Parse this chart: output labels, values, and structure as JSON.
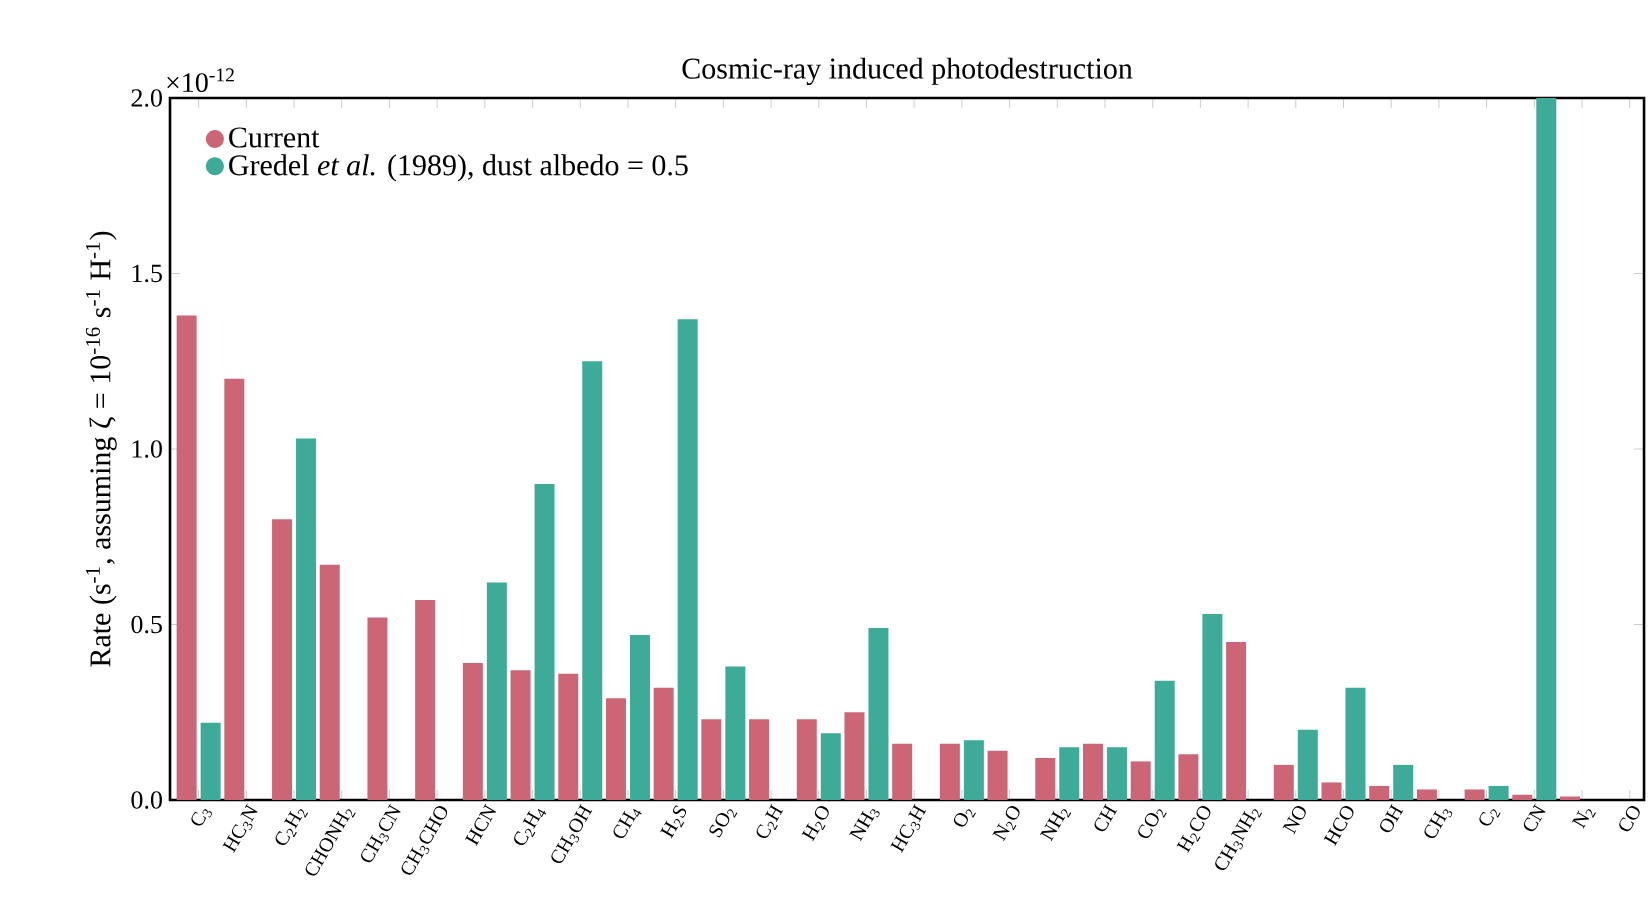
{
  "chart_data": {
    "type": "bar",
    "title": "Cosmic-ray induced photodestruction",
    "ylabel": "Rate (s$^{-1}$, assuming ζ = 10$^{-16}$ s$^{-1}$ H$^{-1}$)",
    "annotations": [
      "×10$^{-12}$"
    ],
    "categories": [
      "C$_{3}$",
      "HC$_{3}$N",
      "C$_{2}$H$_{2}$",
      "CHONH$_{2}$",
      "CH$_{3}$CN",
      "CH$_{3}$CHO",
      "HCN",
      "C$_{2}$H$_{4}$",
      "CH$_{3}$OH",
      "CH$_{4}$",
      "H$_{2}$S",
      "SO$_{2}$",
      "C$_{2}$H",
      "H$_{2}$O",
      "NH$_{3}$",
      "HC$_{3}$H",
      "O$_{2}$",
      "N$_{2}$O",
      "NH$_{2}$",
      "CH",
      "CO$_{2}$",
      "H$_{2}$CO",
      "CH$_{3}$NH$_{2}$",
      "NO",
      "HCO",
      "OH",
      "CH$_{3}$",
      "C$_{2}$",
      "CN",
      "N$_{2}$",
      "CO"
    ],
    "series": [
      {
        "name": "Current",
        "color": "#cc6677",
        "values": [
          1.38,
          1.2,
          0.8,
          0.67,
          0.52,
          0.57,
          0.39,
          0.37,
          0.36,
          0.29,
          0.32,
          0.23,
          0.23,
          0.23,
          0.25,
          0.16,
          0.16,
          0.14,
          0.12,
          0.16,
          0.11,
          0.13,
          0.45,
          0.1,
          0.05,
          0.04,
          0.03,
          0.03,
          0.015,
          0.01,
          null
        ]
      },
      {
        "name": "Gredel *et al.* (1989), dust albedo = 0.5",
        "color": "#3eaa98",
        "values": [
          0.22,
          null,
          1.03,
          null,
          null,
          null,
          0.62,
          0.9,
          1.25,
          0.47,
          1.37,
          0.38,
          null,
          0.19,
          0.49,
          null,
          0.17,
          null,
          0.15,
          0.15,
          0.34,
          0.53,
          null,
          0.2,
          0.32,
          0.1,
          null,
          0.04,
          2.0,
          null,
          null
        ]
      }
    ],
    "ylim": [
      0,
      2.0
    ],
    "yticks": [
      {
        "value": 0,
        "label": "0.0"
      },
      {
        "value": 0.5,
        "label": "0.5"
      },
      {
        "value": 1.0,
        "label": "1.0"
      },
      {
        "value": 1.5,
        "label": "1.5"
      },
      {
        "value": 2.0,
        "label": "2.0"
      }
    ],
    "legend": "top left",
    "marker": "circle",
    "grid": false
  }
}
